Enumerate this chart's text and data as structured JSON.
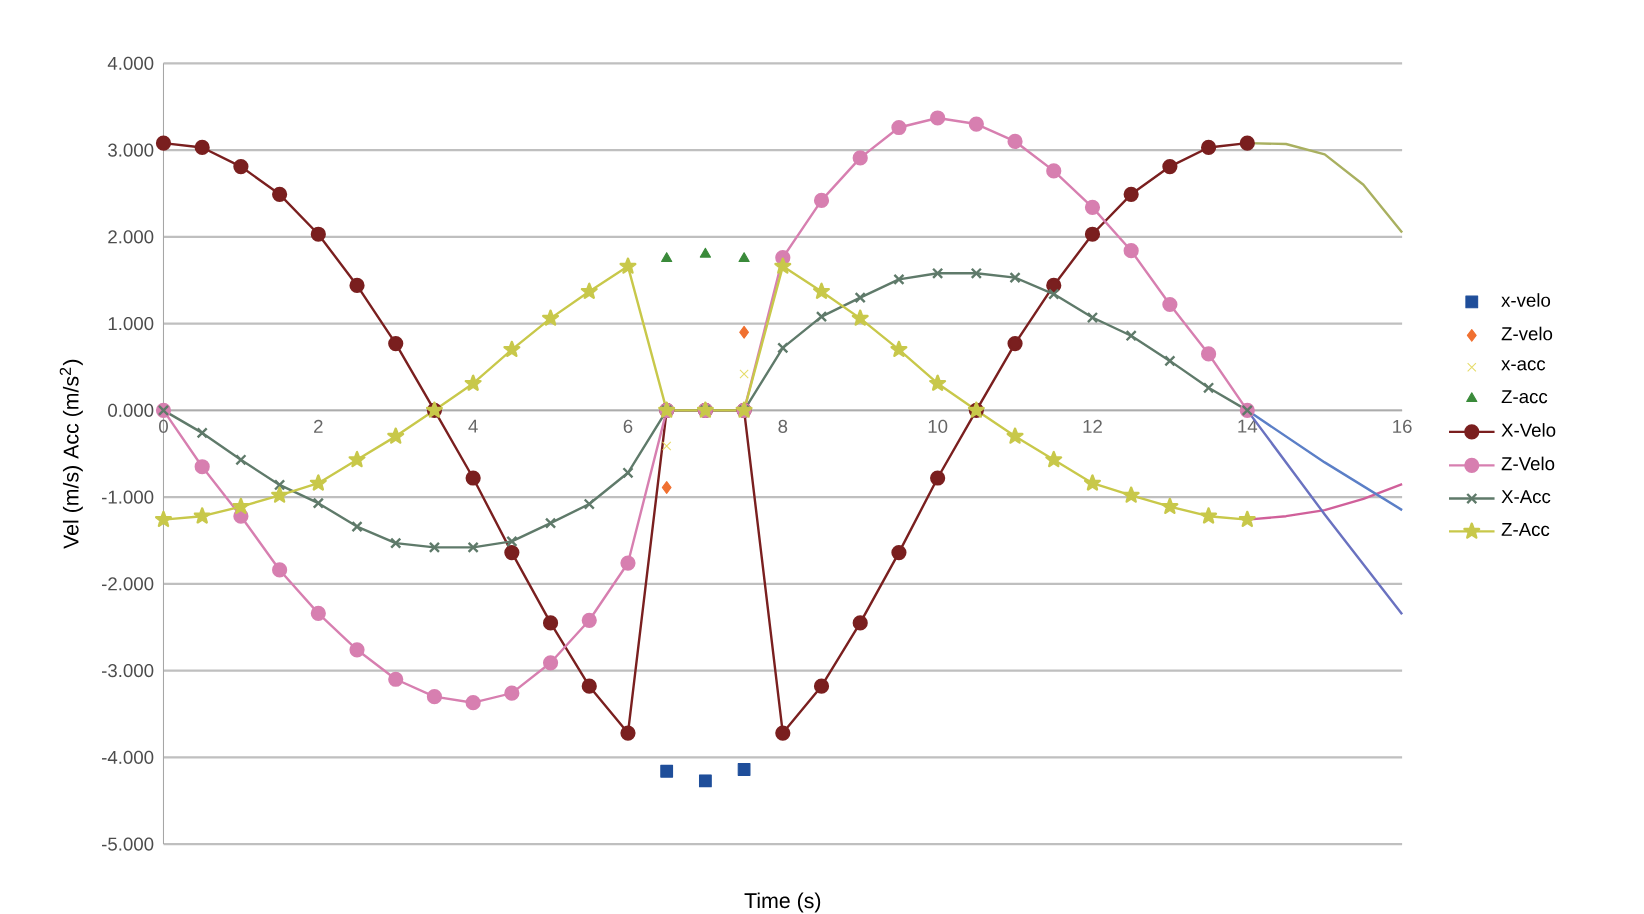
{
  "chart_data": {
    "type": "line",
    "xlabel": "Time (s)",
    "ylabel": "Vel (m/s) Acc (m/s$^{2}$)",
    "xlim": [
      0,
      16
    ],
    "xticks": [
      0,
      2,
      4,
      6,
      8,
      10,
      12,
      14,
      16
    ],
    "ylim": [
      -5,
      4
    ],
    "yticks": [
      {
        "value": -5,
        "label": "-5.000"
      },
      {
        "value": -4,
        "label": "-4.000"
      },
      {
        "value": -3,
        "label": "-3.000"
      },
      {
        "value": -2,
        "label": "-2.000"
      },
      {
        "value": -1,
        "label": "-1.000"
      },
      {
        "value": 0,
        "label": "0.000"
      },
      {
        "value": 1,
        "label": "1.000"
      },
      {
        "value": 2,
        "label": "2.000"
      },
      {
        "value": 3,
        "label": "3.000"
      },
      {
        "value": 4,
        "label": "4.000"
      }
    ],
    "grid": "y",
    "legend": "right",
    "series": [
      {
        "name": "x-velo",
        "type": "scatter",
        "marker": "square",
        "color": "#1f4e9a",
        "x": [
          6.5,
          7,
          7.5
        ],
        "values": [
          -4.16,
          -4.27,
          -4.14
        ]
      },
      {
        "name": "Z-velo",
        "type": "scatter",
        "marker": "diamond",
        "color": "#f07030",
        "x": [
          6.5,
          7.5
        ],
        "values": [
          -0.89,
          0.9
        ]
      },
      {
        "name": "x-acc",
        "type": "scatter",
        "marker": "cross",
        "color": "#e6dc6a",
        "x": [
          6.5,
          7.5
        ],
        "values": [
          -0.41,
          0.42
        ]
      },
      {
        "name": "Z-acc",
        "type": "scatter",
        "marker": "triangle",
        "color": "#3a8a3a",
        "x": [
          6.5,
          7,
          7.5
        ],
        "values": [
          1.75,
          1.8,
          1.75
        ]
      },
      {
        "name": "X-Velo",
        "marker": "circle",
        "color": "#7a1f1f",
        "x": [
          0,
          0.5,
          1,
          1.5,
          2,
          2.5,
          3,
          3.5,
          4,
          4.5,
          5,
          5.5,
          6,
          6.5,
          7,
          7.5,
          8,
          8.5,
          9,
          9.5,
          10,
          10.5,
          11,
          11.5,
          12,
          12.5,
          13,
          13.5,
          14
        ],
        "values": [
          3.08,
          3.03,
          2.81,
          2.49,
          2.03,
          1.44,
          0.77,
          0,
          -0.78,
          -1.64,
          -2.45,
          -3.18,
          -3.72,
          0,
          0,
          0,
          -3.72,
          -3.18,
          -2.45,
          -1.64,
          -0.78,
          0,
          0.77,
          1.44,
          2.03,
          2.49,
          2.81,
          3.03,
          3.08
        ]
      },
      {
        "name": "Z-Velo",
        "marker": "circle",
        "color": "#d77fb0",
        "x": [
          0,
          0.5,
          1,
          1.5,
          2,
          2.5,
          3,
          3.5,
          4,
          4.5,
          5,
          5.5,
          6,
          6.5,
          7,
          7.5,
          8,
          8.5,
          9,
          9.5,
          10,
          10.5,
          11,
          11.5,
          12,
          12.5,
          13,
          13.5,
          14
        ],
        "values": [
          0,
          -0.65,
          -1.22,
          -1.84,
          -2.34,
          -2.76,
          -3.1,
          -3.3,
          -3.37,
          -3.26,
          -2.91,
          -2.42,
          -1.76,
          0,
          0,
          0,
          1.76,
          2.42,
          2.91,
          3.26,
          3.37,
          3.3,
          3.1,
          2.76,
          2.34,
          1.84,
          1.22,
          0.65,
          0
        ]
      },
      {
        "name": "X-Acc",
        "marker": "cross",
        "color": "#5f7a6a",
        "x": [
          0,
          0.5,
          1,
          1.5,
          2,
          2.5,
          3,
          3.5,
          4,
          4.5,
          5,
          5.5,
          6,
          6.5,
          7,
          7.5,
          8,
          8.5,
          9,
          9.5,
          10,
          10.5,
          11,
          11.5,
          12,
          12.5,
          13,
          13.5,
          14
        ],
        "values": [
          0,
          -0.26,
          -0.57,
          -0.86,
          -1.07,
          -1.34,
          -1.53,
          -1.58,
          -1.58,
          -1.51,
          -1.3,
          -1.08,
          -0.72,
          0,
          0,
          0,
          0.72,
          1.08,
          1.3,
          1.51,
          1.58,
          1.58,
          1.53,
          1.34,
          1.07,
          0.86,
          0.57,
          0.26,
          0
        ]
      },
      {
        "name": "Z-Acc",
        "marker": "star",
        "color": "#c8c84a",
        "x": [
          0,
          0.5,
          1,
          1.5,
          2,
          2.5,
          3,
          3.5,
          4,
          4.5,
          5,
          5.5,
          6,
          6.5,
          7,
          7.5,
          8,
          8.5,
          9,
          9.5,
          10,
          10.5,
          11,
          11.5,
          12,
          12.5,
          13,
          13.5,
          14
        ],
        "values": [
          -1.26,
          -1.22,
          -1.11,
          -0.98,
          -0.84,
          -0.57,
          -0.3,
          0,
          0.31,
          0.7,
          1.06,
          1.37,
          1.66,
          0,
          0,
          0,
          1.66,
          1.37,
          1.06,
          0.7,
          0.31,
          0,
          -0.3,
          -0.57,
          -0.84,
          -0.98,
          -1.11,
          -1.22,
          -1.26
        ]
      },
      {
        "type": "line",
        "marker": "none",
        "color": "#a9b060",
        "x": [
          14,
          14.5,
          15,
          15.5,
          16
        ],
        "values": [
          3.08,
          3.07,
          2.95,
          2.6,
          2.05
        ]
      },
      {
        "type": "line",
        "marker": "none",
        "color": "#d0609a",
        "x": [
          14,
          14.5,
          15,
          15.5,
          16
        ],
        "values": [
          -1.26,
          -1.22,
          -1.15,
          -1.02,
          -0.85
        ]
      },
      {
        "type": "line",
        "marker": "none",
        "color": "#5b7fc7",
        "x": [
          14,
          15,
          16
        ],
        "values": [
          0,
          -0.6,
          -1.15
        ]
      },
      {
        "type": "line",
        "marker": "none",
        "color": "#6a72c0",
        "x": [
          14,
          15,
          16
        ],
        "values": [
          0,
          -1.2,
          -2.35
        ]
      }
    ]
  }
}
